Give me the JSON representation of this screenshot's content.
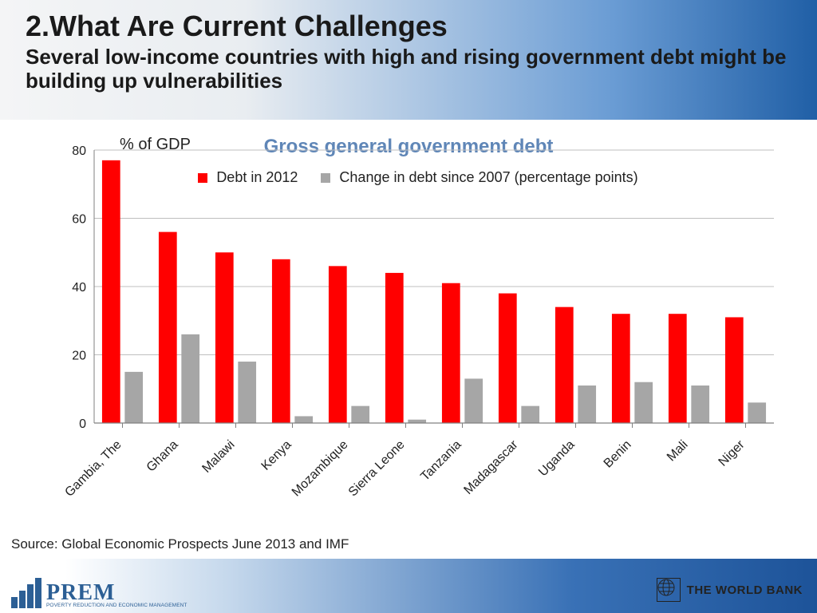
{
  "header": {
    "title": "2.What Are Current Challenges",
    "subtitle": "Several low-income countries with high and rising government debt might be building up vulnerabilities"
  },
  "chart": {
    "type": "bar",
    "y_unit_label": "% of GDP",
    "title": "Gross general government debt",
    "legend_series1": "Debt in 2012",
    "legend_series2": "Change in debt since 2007 (percentage points)",
    "categories": [
      "Gambia, The",
      "Ghana",
      "Malawi",
      "Kenya",
      "Mozambique",
      "Sierra Leone",
      "Tanzania",
      "Madagascar",
      "Uganda",
      "Benin",
      "Mali",
      "Niger"
    ],
    "series1_values": [
      77,
      56,
      50,
      48,
      46,
      44,
      41,
      38,
      34,
      32,
      32,
      31
    ],
    "series2_values": [
      15,
      26,
      18,
      2,
      5,
      1,
      13,
      5,
      11,
      12,
      11,
      6
    ],
    "series1_color": "#ff0000",
    "series2_color": "#a6a6a6",
    "ylim": [
      0,
      80
    ],
    "yticks": [
      0,
      20,
      40,
      60,
      80
    ],
    "tick_label_fontsize": 16,
    "gridline_color": "#bfbfbf",
    "axis_color": "#808080",
    "plot_bg": "#ffffff",
    "bar_width_ratio": 0.32,
    "group_gap_ratio": 0.08
  },
  "source": "Source: Global Economic Prospects June 2013 and IMF",
  "footer": {
    "prem_label": "PREM",
    "prem_tagline": "POVERTY REDUCTION AND ECONOMIC MANAGEMENT",
    "wb_label": "THE WORLD BANK"
  }
}
